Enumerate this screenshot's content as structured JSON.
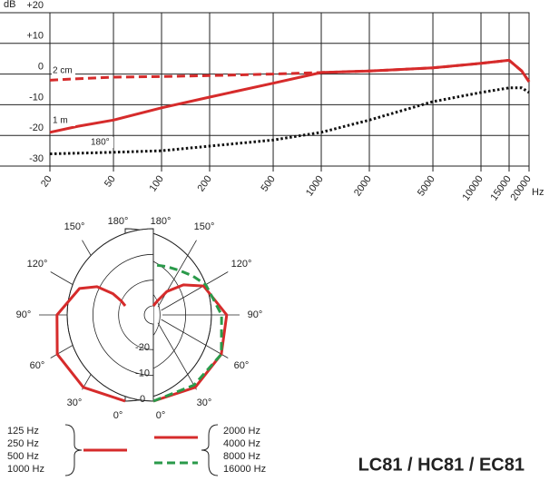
{
  "title": "LC81 / HC81 / EC81",
  "chart_data": [
    {
      "type": "line",
      "x_label": "Hz",
      "y_label": "dB",
      "x": [
        20,
        30,
        50,
        100,
        200,
        500,
        1000,
        2000,
        5000,
        10000,
        15000,
        18000,
        20000
      ],
      "series": [
        {
          "name": "2 cm",
          "color": "#d62b2b",
          "style": "dashed",
          "values": [
            -2,
            -1.5,
            -1,
            -0.8,
            -0.5,
            0,
            0.5,
            1,
            2,
            3.5,
            4.5,
            1,
            -2.5
          ]
        },
        {
          "name": "1 m",
          "color": "#d62b2b",
          "style": "solid",
          "values": [
            -19,
            -17,
            -15,
            -11,
            -7.5,
            -3,
            0.5,
            1,
            2,
            3.5,
            4.5,
            1,
            -2.5
          ]
        },
        {
          "name": "180°",
          "color": "#111111",
          "style": "dotted",
          "values": [
            -26,
            -25.8,
            -25.5,
            -25,
            -23.5,
            -21.5,
            -19,
            -15,
            -9,
            -6,
            -4.5,
            -4.5,
            -6
          ]
        }
      ],
      "xlim": [
        20,
        20000
      ],
      "ylim": [
        -30,
        20
      ],
      "log_x": true,
      "xticks": [
        20,
        50,
        100,
        200,
        500,
        1000,
        2000,
        5000,
        10000,
        15000,
        20000
      ],
      "yticks": [
        {
          "value": 20,
          "label": "+20"
        },
        {
          "value": 10,
          "label": "+10"
        },
        0,
        -10,
        -20,
        -30
      ],
      "grid": true
    },
    {
      "type": "polar",
      "theta": [
        0,
        30,
        60,
        90,
        120,
        135,
        150,
        165,
        180
      ],
      "thetaticks": [
        {
          "value": 0,
          "label": "0°"
        },
        {
          "value": 30,
          "label": "30°"
        },
        {
          "value": 60,
          "label": "60°"
        },
        {
          "value": 90,
          "label": "90°"
        },
        {
          "value": 120,
          "label": "120°"
        },
        {
          "value": 150,
          "label": "150°"
        },
        {
          "value": 180,
          "label": "180°"
        }
      ],
      "rlim": [
        -30,
        0
      ],
      "rticks": [
        0,
        -10,
        -20
      ],
      "series": [
        {
          "names": [
            "125 Hz",
            "250 Hz",
            "500 Hz",
            "1000 Hz"
          ],
          "side": "left",
          "color": "#d62b2b",
          "style": "solid",
          "values": [
            0,
            -1,
            -3,
            -7,
            -13,
            -18,
            -24,
            -28,
            -30
          ]
        },
        {
          "names": [
            "2000 Hz",
            "4000 Hz"
          ],
          "side": "right",
          "color": "#d62b2b",
          "style": "solid",
          "values": [
            0,
            -1,
            -3,
            -5,
            -11,
            -17,
            -23,
            -28,
            -30
          ]
        },
        {
          "names": [
            "8000 Hz",
            "16000 Hz"
          ],
          "side": "right",
          "color": "#2a9a4a",
          "style": "dashed",
          "values": [
            0,
            -2,
            -3,
            -7,
            -10,
            -12,
            -13.5,
            -14,
            -14
          ]
        }
      ]
    }
  ]
}
